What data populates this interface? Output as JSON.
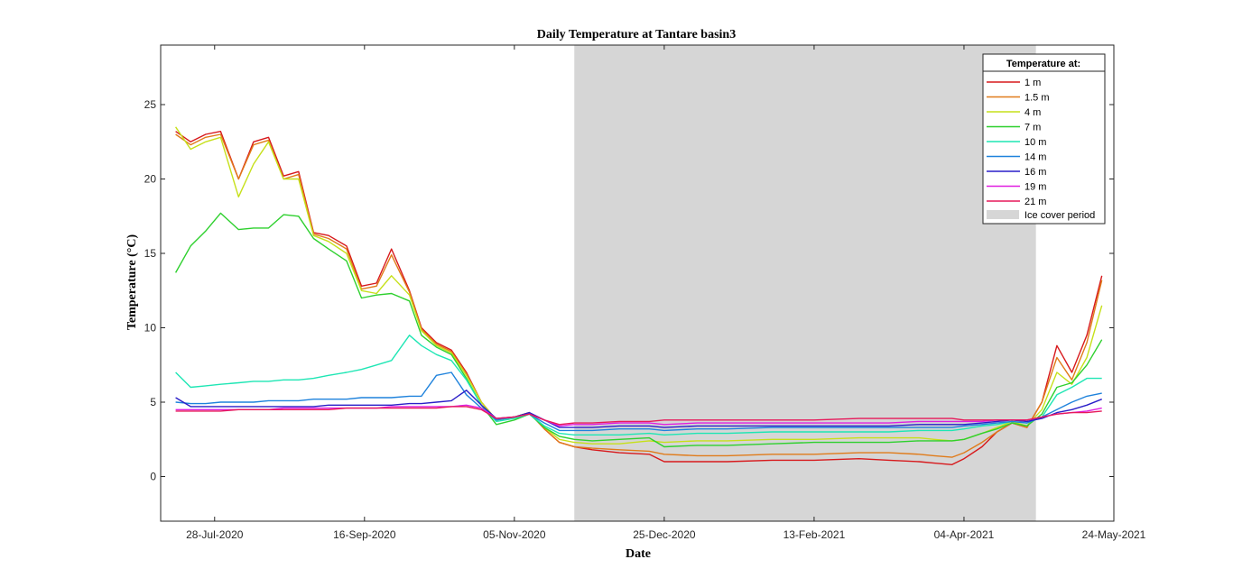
{
  "chart_data": {
    "type": "line",
    "title": "Daily Temperature at Tantare basin3",
    "xlabel": "Date",
    "ylabel": "Temperature (°C)",
    "xlim": [
      "2020-07-10",
      "2021-05-24"
    ],
    "ylim": [
      -3,
      29
    ],
    "x_ticks": [
      "28-Jul-2020",
      "16-Sep-2020",
      "05-Nov-2020",
      "25-Dec-2020",
      "13-Feb-2021",
      "04-Apr-2021",
      "24-May-2021"
    ],
    "y_ticks": [
      0,
      5,
      10,
      15,
      20,
      25
    ],
    "grid": false,
    "legend_title": "Temperature at:",
    "legend_position": "top-right",
    "shaded_region": {
      "label": "Ice cover period",
      "start": "2020-11-25",
      "end": "2021-04-28",
      "color": "#d6d6d6"
    },
    "dates": [
      "2020-07-15",
      "2020-07-20",
      "2020-07-25",
      "2020-07-30",
      "2020-08-05",
      "2020-08-10",
      "2020-08-15",
      "2020-08-20",
      "2020-08-25",
      "2020-08-30",
      "2020-09-04",
      "2020-09-10",
      "2020-09-15",
      "2020-09-20",
      "2020-09-25",
      "2020-10-01",
      "2020-10-05",
      "2020-10-10",
      "2020-10-15",
      "2020-10-20",
      "2020-10-25",
      "2020-10-30",
      "2020-11-05",
      "2020-11-10",
      "2020-11-15",
      "2020-11-20",
      "2020-11-25",
      "2020-12-01",
      "2020-12-10",
      "2020-12-20",
      "2020-12-25",
      "2021-01-05",
      "2021-01-15",
      "2021-01-30",
      "2021-02-13",
      "2021-02-28",
      "2021-03-10",
      "2021-03-20",
      "2021-03-25",
      "2021-03-31",
      "2021-04-04",
      "2021-04-10",
      "2021-04-15",
      "2021-04-20",
      "2021-04-25",
      "2021-04-30",
      "2021-05-05",
      "2021-05-10",
      "2021-05-15",
      "2021-05-20"
    ],
    "series": [
      {
        "name": "1 m",
        "color": "#d7191c",
        "values": [
          23.2,
          22.5,
          23.0,
          23.2,
          20.0,
          22.5,
          22.8,
          20.2,
          20.5,
          16.4,
          16.2,
          15.5,
          12.8,
          13.0,
          15.3,
          12.5,
          10.0,
          9.0,
          8.5,
          7.0,
          5.0,
          3.8,
          4.0,
          4.3,
          3.2,
          2.3,
          2.0,
          1.8,
          1.6,
          1.5,
          1.0,
          1.0,
          1.0,
          1.1,
          1.1,
          1.2,
          1.1,
          1.0,
          0.9,
          0.8,
          1.2,
          2.0,
          3.0,
          3.6,
          3.3,
          5.0,
          8.8,
          7.0,
          9.5,
          13.5
        ]
      },
      {
        "name": "1.5 m",
        "color": "#e07b1a",
        "values": [
          23.0,
          22.3,
          22.8,
          23.0,
          20.0,
          22.3,
          22.6,
          20.0,
          20.3,
          16.3,
          16.0,
          15.3,
          12.6,
          12.8,
          14.9,
          12.4,
          9.9,
          8.9,
          8.4,
          6.9,
          5.0,
          3.8,
          4.0,
          4.3,
          3.2,
          2.3,
          2.0,
          1.9,
          1.8,
          1.7,
          1.5,
          1.4,
          1.4,
          1.5,
          1.5,
          1.6,
          1.6,
          1.5,
          1.4,
          1.3,
          1.6,
          2.3,
          3.0,
          3.6,
          3.3,
          5.0,
          8.0,
          6.5,
          9.0,
          13.2
        ]
      },
      {
        "name": "4 m",
        "color": "#c6e01a",
        "values": [
          23.5,
          22.0,
          22.5,
          22.8,
          18.8,
          21.0,
          22.5,
          20.0,
          20.0,
          16.2,
          15.8,
          15.0,
          12.5,
          12.3,
          13.5,
          12.2,
          9.8,
          8.8,
          8.3,
          6.8,
          5.0,
          3.8,
          4.0,
          4.3,
          3.3,
          2.5,
          2.3,
          2.2,
          2.2,
          2.4,
          2.3,
          2.4,
          2.4,
          2.5,
          2.5,
          2.6,
          2.6,
          2.6,
          2.5,
          2.4,
          2.5,
          2.9,
          3.3,
          3.7,
          3.4,
          4.5,
          7.0,
          6.2,
          8.0,
          11.5
        ]
      },
      {
        "name": "7 m",
        "color": "#2ed02e",
        "values": [
          13.7,
          15.5,
          16.5,
          17.7,
          16.6,
          16.7,
          16.7,
          17.6,
          17.5,
          16.0,
          15.3,
          14.5,
          12.0,
          12.2,
          12.3,
          11.8,
          9.5,
          8.7,
          8.2,
          6.6,
          4.8,
          3.5,
          3.8,
          4.2,
          3.3,
          2.7,
          2.5,
          2.4,
          2.5,
          2.6,
          2.0,
          2.1,
          2.1,
          2.2,
          2.3,
          2.3,
          2.3,
          2.4,
          2.4,
          2.4,
          2.5,
          2.9,
          3.2,
          3.6,
          3.4,
          4.2,
          6.0,
          6.3,
          7.5,
          9.2
        ]
      },
      {
        "name": "10 m",
        "color": "#1ee6b4",
        "values": [
          7.0,
          6.0,
          6.1,
          6.2,
          6.3,
          6.4,
          6.4,
          6.5,
          6.5,
          6.6,
          6.8,
          7.0,
          7.2,
          7.5,
          7.8,
          9.5,
          8.8,
          8.2,
          7.8,
          6.5,
          4.8,
          3.7,
          3.9,
          4.2,
          3.4,
          2.9,
          2.8,
          2.8,
          2.8,
          2.9,
          2.8,
          2.9,
          2.9,
          3.0,
          3.0,
          3.0,
          3.0,
          3.1,
          3.1,
          3.1,
          3.2,
          3.4,
          3.5,
          3.7,
          3.6,
          4.0,
          5.5,
          6.0,
          6.6,
          6.6
        ]
      },
      {
        "name": "14 m",
        "color": "#1e82dc",
        "values": [
          5.0,
          4.9,
          4.9,
          5.0,
          5.0,
          5.0,
          5.1,
          5.1,
          5.1,
          5.2,
          5.2,
          5.2,
          5.3,
          5.3,
          5.3,
          5.4,
          5.4,
          6.8,
          7.0,
          5.5,
          4.6,
          3.8,
          4.0,
          4.2,
          3.6,
          3.1,
          3.1,
          3.1,
          3.2,
          3.2,
          3.1,
          3.2,
          3.2,
          3.3,
          3.3,
          3.3,
          3.3,
          3.3,
          3.3,
          3.3,
          3.4,
          3.5,
          3.6,
          3.7,
          3.6,
          4.0,
          4.5,
          5.0,
          5.4,
          5.6
        ]
      },
      {
        "name": "16 m",
        "color": "#2a1ec8",
        "values": [
          5.3,
          4.7,
          4.7,
          4.7,
          4.7,
          4.7,
          4.7,
          4.7,
          4.7,
          4.7,
          4.8,
          4.8,
          4.8,
          4.8,
          4.8,
          4.9,
          4.9,
          5.0,
          5.1,
          5.8,
          4.8,
          3.9,
          4.0,
          4.3,
          3.8,
          3.3,
          3.3,
          3.3,
          3.4,
          3.4,
          3.3,
          3.4,
          3.4,
          3.4,
          3.4,
          3.4,
          3.4,
          3.5,
          3.5,
          3.5,
          3.5,
          3.6,
          3.7,
          3.8,
          3.7,
          3.9,
          4.3,
          4.5,
          4.8,
          5.2
        ]
      },
      {
        "name": "19 m",
        "color": "#e01ee0",
        "values": [
          4.5,
          4.5,
          4.5,
          4.5,
          4.5,
          4.5,
          4.5,
          4.6,
          4.6,
          4.6,
          4.6,
          4.6,
          4.6,
          4.6,
          4.7,
          4.7,
          4.7,
          4.7,
          4.7,
          4.8,
          4.6,
          3.9,
          4.0,
          4.2,
          3.8,
          3.4,
          3.5,
          3.5,
          3.6,
          3.6,
          3.5,
          3.6,
          3.6,
          3.6,
          3.6,
          3.6,
          3.6,
          3.7,
          3.7,
          3.7,
          3.7,
          3.7,
          3.8,
          3.8,
          3.8,
          4.0,
          4.2,
          4.3,
          4.4,
          4.6
        ]
      },
      {
        "name": "21 m",
        "color": "#e6195a",
        "values": [
          4.4,
          4.4,
          4.4,
          4.4,
          4.5,
          4.5,
          4.5,
          4.5,
          4.5,
          4.5,
          4.5,
          4.6,
          4.6,
          4.6,
          4.6,
          4.6,
          4.6,
          4.6,
          4.7,
          4.7,
          4.5,
          3.9,
          4.0,
          4.2,
          3.8,
          3.5,
          3.6,
          3.6,
          3.7,
          3.7,
          3.8,
          3.8,
          3.8,
          3.8,
          3.8,
          3.9,
          3.9,
          3.9,
          3.9,
          3.9,
          3.8,
          3.8,
          3.8,
          3.8,
          3.8,
          4.0,
          4.2,
          4.3,
          4.3,
          4.4
        ]
      }
    ]
  }
}
